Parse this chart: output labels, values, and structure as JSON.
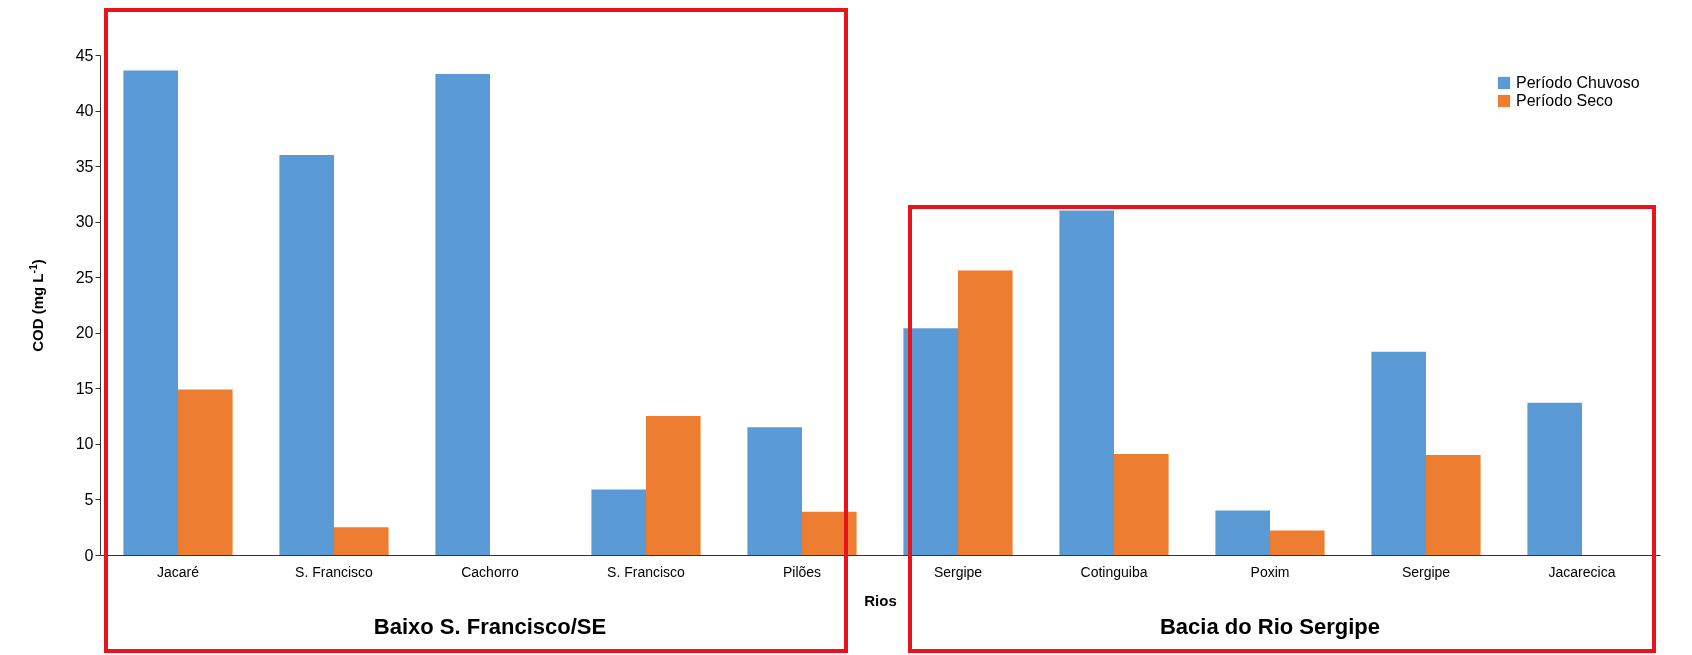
{
  "chart_data": {
    "type": "bar",
    "ylabel": "COD (mg L$^{-1}$)",
    "xlabel": "Rios",
    "categories": [
      "Jacaré",
      "S. Francisco",
      "Cachorro",
      "S. Francisco",
      "Pilões",
      "Sergipe",
      "Cotinguiba",
      "Poxim",
      "Sergipe",
      "Jacarecica"
    ],
    "series": [
      {
        "name": "Período Chuvoso",
        "color": "#5b9bd5",
        "values": [
          43.6,
          36.0,
          43.3,
          5.9,
          11.5,
          20.4,
          31.0,
          4.0,
          18.3,
          13.7
        ]
      },
      {
        "name": "Período Seco",
        "color": "#ed7d31",
        "values": [
          14.9,
          2.5,
          0,
          12.5,
          3.9,
          25.6,
          9.1,
          2.2,
          9.0,
          0
        ]
      }
    ],
    "ylim": [
      0,
      45
    ],
    "yticks": [
      0,
      5,
      10,
      15,
      20,
      25,
      30,
      35,
      40,
      45
    ],
    "grid": false,
    "legend": "top right",
    "annotations": [
      "Baixo S. Francisco/SE",
      "Bacia do Rio Sergipe"
    ]
  }
}
